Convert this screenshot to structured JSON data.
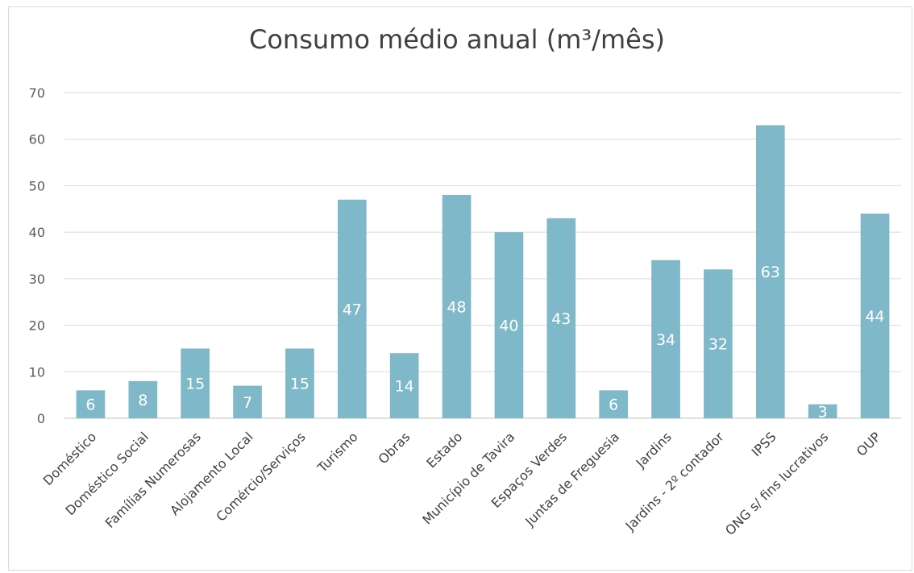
{
  "chart_data": {
    "type": "bar",
    "title": "Consumo médio anual (m³/mês)",
    "xlabel": "",
    "ylabel": "",
    "ylim": [
      0,
      70
    ],
    "yticks": [
      0,
      10,
      20,
      30,
      40,
      50,
      60,
      70
    ],
    "grid": true,
    "legend": "none",
    "bar_color": "#7fb8c9",
    "categories": [
      "Doméstico",
      "Doméstico Social",
      "Famílias Numerosas",
      "Alojamento Local",
      "Comércio/Serviços",
      "Turismo",
      "Obras",
      "Estado",
      "Município de Tavira",
      "Espaços Verdes",
      "Juntas de Freguesia",
      "Jardins",
      "Jardins - 2º contador",
      "IPSS",
      "ONG s/ fins lucrativos",
      "OUP"
    ],
    "values": [
      6,
      8,
      15,
      7,
      15,
      47,
      14,
      48,
      40,
      43,
      6,
      34,
      32,
      63,
      3,
      44
    ],
    "data_labels": [
      "6",
      "8",
      "15",
      "7",
      "15",
      "47",
      "14",
      "48",
      "40",
      "43",
      "6",
      "34",
      "32",
      "63",
      "3",
      "44"
    ]
  }
}
